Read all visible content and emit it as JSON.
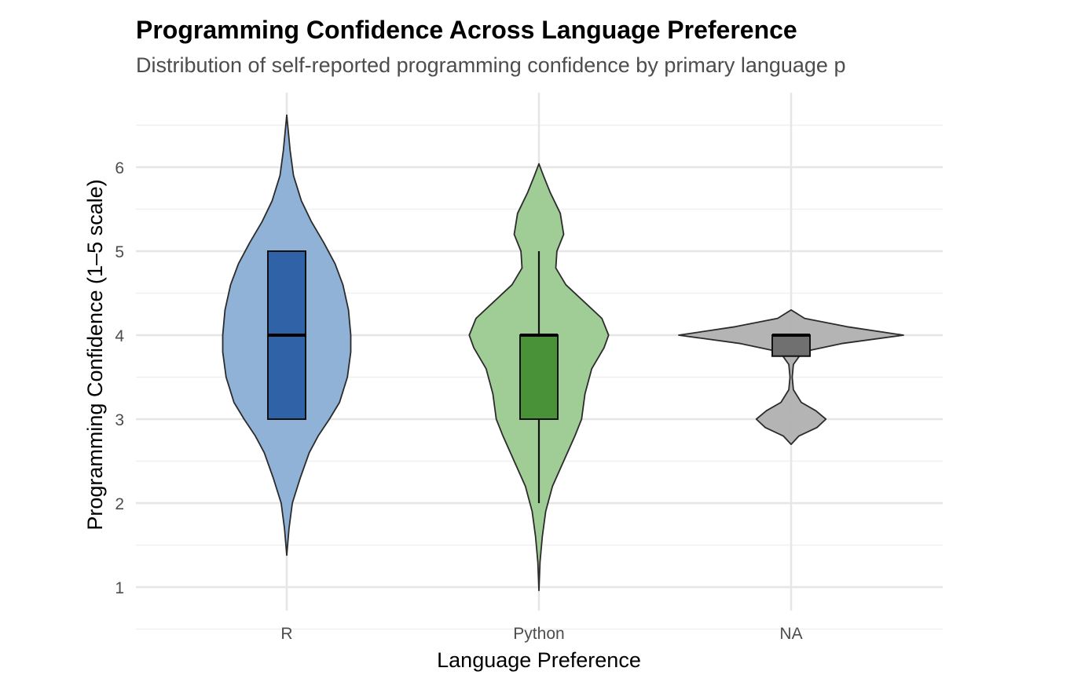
{
  "chart_data": {
    "type": "violin",
    "title": "Programming Confidence Across Language Preference",
    "subtitle": "Distribution of self-reported programming confidence by primary language p",
    "xlabel": "Language Preference",
    "ylabel": "Programming Confidence (1–5 scale)",
    "ylim": [
      0.8,
      6.65
    ],
    "y_ticks": [
      "1",
      "2",
      "3",
      "4",
      "5",
      "6"
    ],
    "y_tick_values": [
      1,
      2,
      3,
      4,
      5,
      6
    ],
    "categories": [
      "R",
      "Python",
      "NA"
    ],
    "grid": true,
    "legend": "none",
    "groups": [
      {
        "category": "R",
        "violin_color": "#8aaed4",
        "box_color": "#2f62a6",
        "violin_range": [
          1.38,
          6.62
        ],
        "box": {
          "q1": 3,
          "median": 4,
          "q3": 5,
          "whisker_low": 3,
          "whisker_high": 5
        },
        "density": [
          [
            1.38,
            0.0
          ],
          [
            1.7,
            0.02
          ],
          [
            2.0,
            0.05
          ],
          [
            2.3,
            0.12
          ],
          [
            2.6,
            0.2
          ],
          [
            2.8,
            0.28
          ],
          [
            3.0,
            0.38
          ],
          [
            3.2,
            0.47
          ],
          [
            3.5,
            0.54
          ],
          [
            3.8,
            0.57
          ],
          [
            4.0,
            0.57
          ],
          [
            4.3,
            0.55
          ],
          [
            4.6,
            0.5
          ],
          [
            4.85,
            0.43
          ],
          [
            5.1,
            0.33
          ],
          [
            5.35,
            0.22
          ],
          [
            5.6,
            0.13
          ],
          [
            5.9,
            0.06
          ],
          [
            6.2,
            0.03
          ],
          [
            6.62,
            0.0
          ]
        ]
      },
      {
        "category": "Python",
        "violin_color": "#9bc98f",
        "box_color": "#4a9238",
        "violin_range": [
          0.96,
          6.04
        ],
        "box": {
          "q1": 3,
          "median": 4,
          "q3": 4,
          "whisker_low": 2,
          "whisker_high": 5
        },
        "density": [
          [
            0.96,
            0.0
          ],
          [
            1.3,
            0.01
          ],
          [
            1.6,
            0.03
          ],
          [
            1.9,
            0.06
          ],
          [
            2.2,
            0.12
          ],
          [
            2.5,
            0.22
          ],
          [
            2.8,
            0.32
          ],
          [
            3.0,
            0.38
          ],
          [
            3.3,
            0.41
          ],
          [
            3.6,
            0.47
          ],
          [
            3.85,
            0.58
          ],
          [
            4.0,
            0.62
          ],
          [
            4.2,
            0.56
          ],
          [
            4.4,
            0.4
          ],
          [
            4.6,
            0.24
          ],
          [
            4.8,
            0.15
          ],
          [
            5.0,
            0.16
          ],
          [
            5.2,
            0.22
          ],
          [
            5.45,
            0.19
          ],
          [
            5.7,
            0.1
          ],
          [
            5.9,
            0.04
          ],
          [
            6.04,
            0.0
          ]
        ]
      },
      {
        "category": "NA",
        "violin_color": "#b0b0b0",
        "box_color": "#707070",
        "violin_range": [
          2.7,
          4.3
        ],
        "box": {
          "q1": 3.75,
          "median": 4,
          "q3": 4,
          "whisker_low": 3.75,
          "whisker_high": 4
        },
        "density": [
          [
            2.7,
            0.0
          ],
          [
            2.8,
            0.07
          ],
          [
            2.9,
            0.23
          ],
          [
            3.0,
            0.31
          ],
          [
            3.1,
            0.22
          ],
          [
            3.2,
            0.09
          ],
          [
            3.35,
            0.02
          ],
          [
            3.5,
            0.01
          ],
          [
            3.65,
            0.02
          ],
          [
            3.8,
            0.1
          ],
          [
            3.9,
            0.45
          ],
          [
            4.0,
            1.0
          ],
          [
            4.1,
            0.5
          ],
          [
            4.2,
            0.12
          ],
          [
            4.3,
            0.0
          ]
        ]
      }
    ]
  }
}
